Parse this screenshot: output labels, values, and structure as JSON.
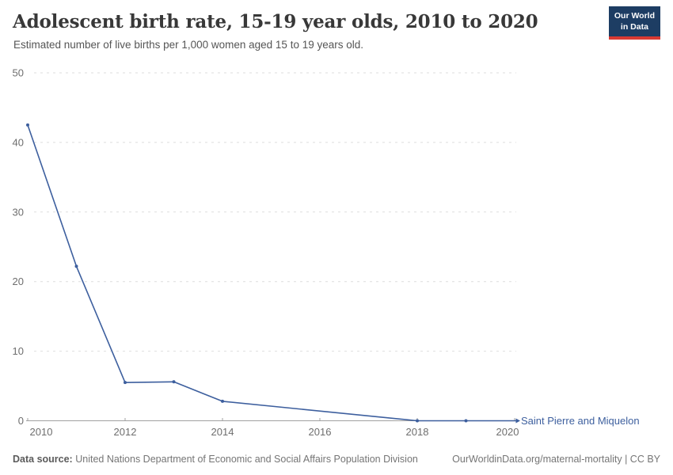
{
  "header": {
    "title": "Adolescent birth rate, 15-19 year olds, 2010 to 2020",
    "subtitle": "Estimated number of live births per 1,000 women aged 15 to 19 years old.",
    "logo": {
      "line1": "Our World",
      "line2": "in Data"
    }
  },
  "chart_data": {
    "type": "line",
    "title": "Adolescent birth rate, 15-19 year olds, 2010 to 2020",
    "ylabel": "",
    "xlabel": "",
    "xlim": [
      2010,
      2020
    ],
    "ylim": [
      0,
      50
    ],
    "x_ticks": [
      2010,
      2012,
      2014,
      2016,
      2018,
      2020
    ],
    "y_ticks": [
      0,
      10,
      20,
      30,
      40,
      50
    ],
    "grid": "horizontal-dashed",
    "legend_position": "end-of-line-label",
    "series": [
      {
        "name": "Saint Pierre and Miquelon",
        "color": "#3d5f9e",
        "points": [
          {
            "year": 2010,
            "value": 42.5,
            "marker": true
          },
          {
            "year": 2011,
            "value": 22.2,
            "marker": true
          },
          {
            "year": 2012,
            "value": 5.5,
            "marker": true
          },
          {
            "year": 2013,
            "value": 5.6,
            "marker": true
          },
          {
            "year": 2014,
            "value": 2.8,
            "marker": true
          },
          {
            "year": 2018,
            "value": 0,
            "marker": true
          },
          {
            "year": 2019,
            "value": 0,
            "marker": true
          },
          {
            "year": 2020,
            "value": 0,
            "marker": false
          }
        ]
      }
    ]
  },
  "footer": {
    "datasource_label": "Data source:",
    "datasource_text": "United Nations Department of Economic and Social Affairs Population Division",
    "license_text": "OurWorldinData.org/maternal-mortality | CC BY"
  },
  "colors": {
    "line": "#3d5f9e",
    "grid": "#dedede",
    "axis": "#a1a1a1",
    "tick_label": "#6e6e6e",
    "title": "#383838",
    "subtitle": "#555555",
    "logo_bg": "#1d3d63",
    "logo_bar": "#d93a33"
  }
}
